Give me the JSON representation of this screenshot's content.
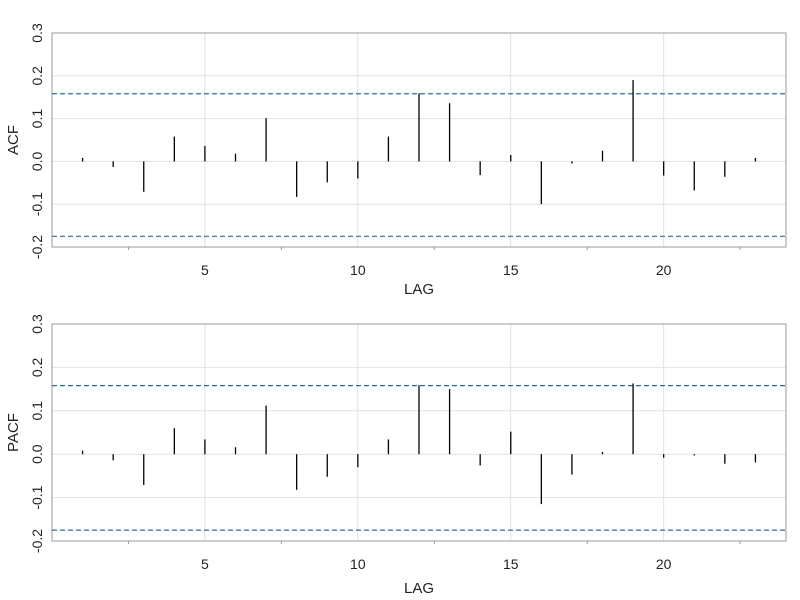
{
  "chart_data": [
    {
      "type": "bar",
      "subtype": "acf",
      "xlabel": "LAG",
      "ylabel": "ACF",
      "xlim": [
        0,
        24
      ],
      "ylim": [
        -0.2,
        0.3
      ],
      "xticks": [
        5,
        10,
        15,
        20
      ],
      "yticks": [
        -0.2,
        -0.1,
        0.0,
        0.1,
        0.2,
        0.3
      ],
      "ytick_labels": [
        "-0.2",
        "-0.1",
        "0.0",
        "0.1",
        "0.2",
        "0.3"
      ],
      "grid": true,
      "confidence_bounds": [
        0.158,
        -0.175
      ],
      "x": [
        1,
        2,
        3,
        4,
        5,
        6,
        7,
        8,
        9,
        10,
        11,
        12,
        13,
        14,
        15,
        16,
        17,
        18,
        19,
        20,
        21,
        22,
        23
      ],
      "values": [
        0.008,
        -0.013,
        -0.071,
        0.058,
        0.036,
        0.018,
        0.101,
        -0.083,
        -0.049,
        -0.04,
        0.058,
        0.159,
        0.136,
        -0.032,
        0.015,
        -0.1,
        -0.005,
        0.025,
        0.19,
        -0.033,
        -0.068,
        -0.036,
        0.008
      ]
    },
    {
      "type": "bar",
      "subtype": "pacf",
      "xlabel": "LAG",
      "ylabel": "PACF",
      "xlim": [
        0,
        24
      ],
      "ylim": [
        -0.2,
        0.3
      ],
      "xticks": [
        5,
        10,
        15,
        20
      ],
      "yticks": [
        -0.2,
        -0.1,
        0.0,
        0.1,
        0.2,
        0.3
      ],
      "ytick_labels": [
        "-0.2",
        "-0.1",
        "0.0",
        "0.1",
        "0.2",
        "0.3"
      ],
      "grid": true,
      "confidence_bounds": [
        0.158,
        -0.175
      ],
      "x": [
        1,
        2,
        3,
        4,
        5,
        6,
        7,
        8,
        9,
        10,
        11,
        12,
        13,
        14,
        15,
        16,
        17,
        18,
        19,
        20,
        21,
        22,
        23
      ],
      "values": [
        0.008,
        -0.014,
        -0.071,
        0.06,
        0.034,
        0.016,
        0.112,
        -0.082,
        -0.052,
        -0.03,
        0.034,
        0.159,
        0.15,
        -0.026,
        0.052,
        -0.115,
        -0.047,
        0.005,
        0.163,
        -0.008,
        -0.003,
        -0.022,
        -0.019
      ]
    }
  ],
  "colors": {
    "bar": "#000000",
    "confidence_line": "#2e6b96",
    "grid": "#e2e2e2",
    "frame": "#9a9a9a"
  }
}
